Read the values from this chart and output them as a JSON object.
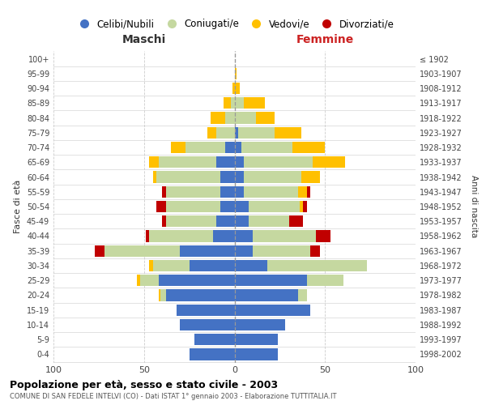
{
  "age_groups": [
    "0-4",
    "5-9",
    "10-14",
    "15-19",
    "20-24",
    "25-29",
    "30-34",
    "35-39",
    "40-44",
    "45-49",
    "50-54",
    "55-59",
    "60-64",
    "65-69",
    "70-74",
    "75-79",
    "80-84",
    "85-89",
    "90-94",
    "95-99",
    "100+"
  ],
  "birth_years": [
    "1998-2002",
    "1993-1997",
    "1988-1992",
    "1983-1987",
    "1978-1982",
    "1973-1977",
    "1968-1972",
    "1963-1967",
    "1958-1962",
    "1953-1957",
    "1948-1952",
    "1943-1947",
    "1938-1942",
    "1933-1937",
    "1928-1932",
    "1923-1927",
    "1918-1922",
    "1913-1917",
    "1908-1912",
    "1903-1907",
    "≤ 1902"
  ],
  "males": {
    "celibi": [
      25,
      22,
      30,
      32,
      38,
      42,
      25,
      30,
      12,
      10,
      8,
      8,
      8,
      10,
      5,
      0,
      0,
      0,
      0,
      0,
      0
    ],
    "coniugati": [
      0,
      0,
      0,
      0,
      3,
      10,
      20,
      42,
      35,
      28,
      30,
      30,
      35,
      32,
      22,
      10,
      5,
      2,
      0,
      0,
      0
    ],
    "vedovi": [
      0,
      0,
      0,
      0,
      1,
      2,
      2,
      0,
      0,
      0,
      0,
      0,
      2,
      5,
      8,
      5,
      8,
      4,
      1,
      0,
      0
    ],
    "divorziati": [
      0,
      0,
      0,
      0,
      0,
      0,
      0,
      5,
      2,
      2,
      5,
      2,
      0,
      0,
      0,
      0,
      0,
      0,
      0,
      0,
      0
    ]
  },
  "females": {
    "nubili": [
      24,
      24,
      28,
      42,
      35,
      40,
      18,
      10,
      10,
      8,
      8,
      5,
      5,
      5,
      4,
      2,
      0,
      0,
      0,
      0,
      0
    ],
    "coniugate": [
      0,
      0,
      0,
      0,
      5,
      20,
      55,
      32,
      35,
      22,
      28,
      30,
      32,
      38,
      28,
      20,
      12,
      5,
      0,
      0,
      0
    ],
    "vedove": [
      0,
      0,
      0,
      0,
      0,
      0,
      0,
      0,
      0,
      0,
      2,
      5,
      10,
      18,
      18,
      15,
      10,
      12,
      3,
      1,
      0
    ],
    "divorziate": [
      0,
      0,
      0,
      0,
      0,
      0,
      0,
      5,
      8,
      8,
      2,
      2,
      0,
      0,
      0,
      0,
      0,
      0,
      0,
      0,
      0
    ]
  },
  "color_celibi": "#4472c4",
  "color_coniugati": "#c5d8a0",
  "color_vedovi": "#ffc000",
  "color_divorziati": "#c00000",
  "title": "Popolazione per età, sesso e stato civile - 2003",
  "subtitle": "COMUNE DI SAN FEDELE INTELVI (CO) - Dati ISTAT 1° gennaio 2003 - Elaborazione TUTTITALIA.IT",
  "xlabel_left": "Maschi",
  "xlabel_right": "Femmine",
  "ylabel_left": "Fasce di età",
  "ylabel_right": "Anni di nascita",
  "legend_labels": [
    "Celibi/Nubili",
    "Coniugati/e",
    "Vedovi/e",
    "Divorziati/e"
  ],
  "background_color": "#ffffff",
  "grid_color": "#cccccc"
}
